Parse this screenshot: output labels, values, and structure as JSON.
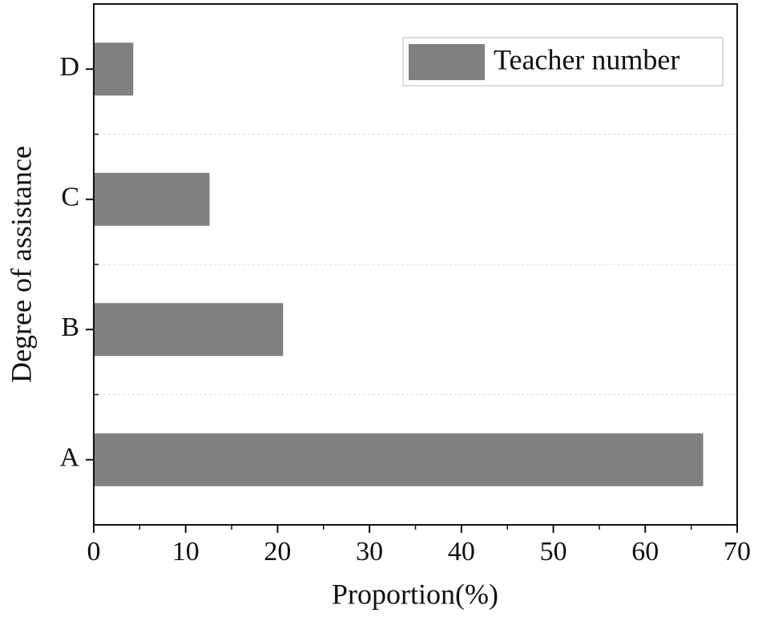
{
  "chart_data": {
    "type": "bar",
    "orientation": "horizontal",
    "x_label": "Proportion(%)",
    "y_label": "Degree of assistance",
    "categories": [
      "A",
      "B",
      "C",
      "D"
    ],
    "series": [
      {
        "name": "Teacher number",
        "color": "#808080",
        "values": [
          66.3,
          20.6,
          12.6,
          4.3
        ]
      }
    ],
    "xlim": [
      0,
      70
    ],
    "xticks": [
      0,
      10,
      20,
      30,
      40,
      50,
      60,
      70
    ],
    "legend": "top-right"
  }
}
